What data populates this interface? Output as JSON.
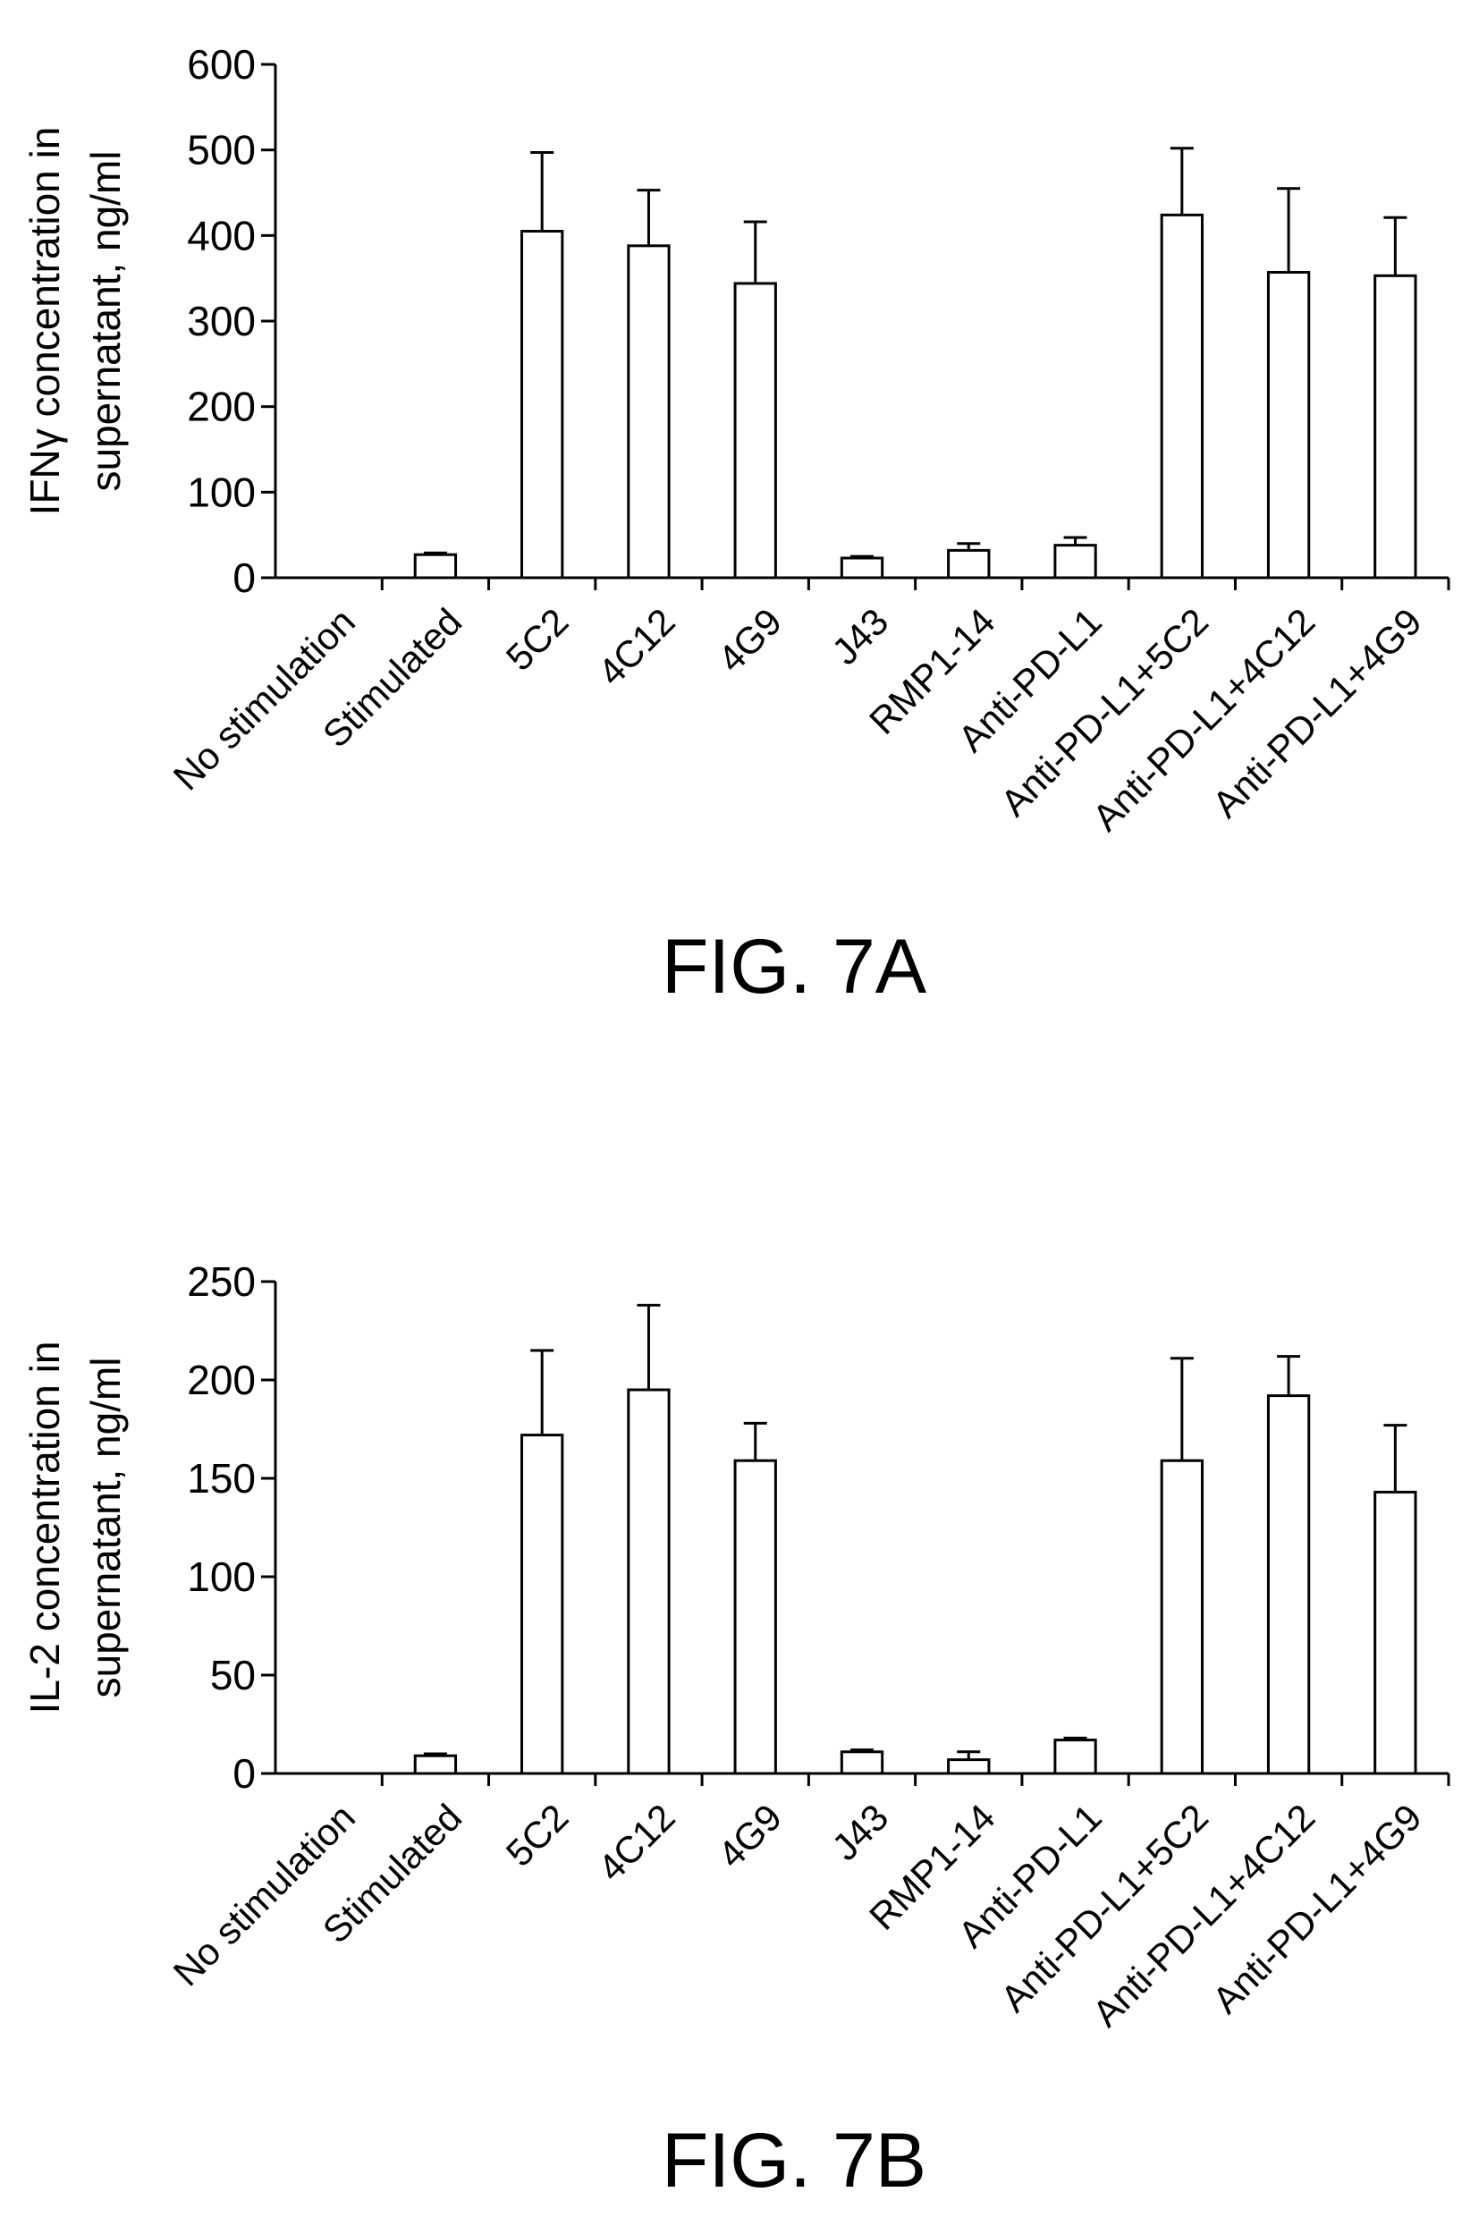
{
  "chart_data": [
    {
      "type": "bar",
      "caption": "FIG. 7A",
      "ylabel_lines": [
        "IFNγ concentration in",
        "supernatant, ng/ml"
      ],
      "ylim": [
        0,
        600
      ],
      "yticks": [
        0,
        100,
        200,
        300,
        400,
        500,
        600
      ],
      "categories": [
        "No stimulation",
        "Stimulated",
        "5C2",
        "4C12",
        "4G9",
        "J43",
        "RMP1-14",
        "Anti-PD-L1",
        "Anti-PD-L1+5C2",
        "Anti-PD-L1+4C12",
        "Anti-PD-L1+4G9"
      ],
      "values": [
        0,
        27,
        405,
        388,
        344,
        23,
        32,
        38,
        424,
        357,
        353
      ],
      "errors": [
        0,
        2,
        92,
        65,
        72,
        2,
        8,
        9,
        78,
        98,
        68
      ],
      "grid": false
    },
    {
      "type": "bar",
      "caption": "FIG. 7B",
      "ylabel_lines": [
        "IL-2 concentration in",
        "supernatant, ng/ml"
      ],
      "ylim": [
        0,
        250
      ],
      "yticks": [
        0,
        50,
        100,
        150,
        200,
        250
      ],
      "categories": [
        "No stimulation",
        "Stimulated",
        "5C2",
        "4C12",
        "4G9",
        "J43",
        "RMP1-14",
        "Anti-PD-L1",
        "Anti-PD-L1+5C2",
        "Anti-PD-L1+4C12",
        "Anti-PD-L1+4G9"
      ],
      "values": [
        0,
        9,
        172,
        195,
        159,
        11,
        7,
        17,
        159,
        192,
        143
      ],
      "errors": [
        0,
        1,
        43,
        43,
        19,
        1,
        4,
        1,
        52,
        20,
        34
      ],
      "grid": false
    }
  ]
}
